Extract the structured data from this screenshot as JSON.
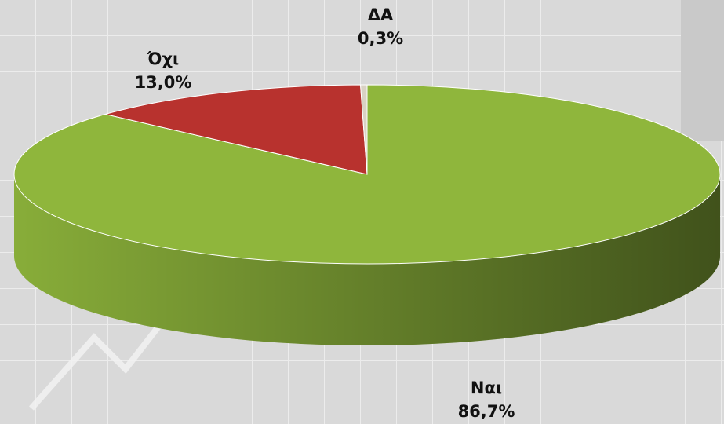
{
  "chart_data": {
    "type": "pie",
    "categories": [
      "Ναι",
      "Όχι",
      "ΔΑ"
    ],
    "values": [
      86.7,
      13.0,
      0.3
    ],
    "value_labels": [
      "86,7%",
      "13,0%",
      "0,3%"
    ],
    "colors": [
      "#8fb63c",
      "#b8322e",
      "#d9d2c4"
    ]
  }
}
